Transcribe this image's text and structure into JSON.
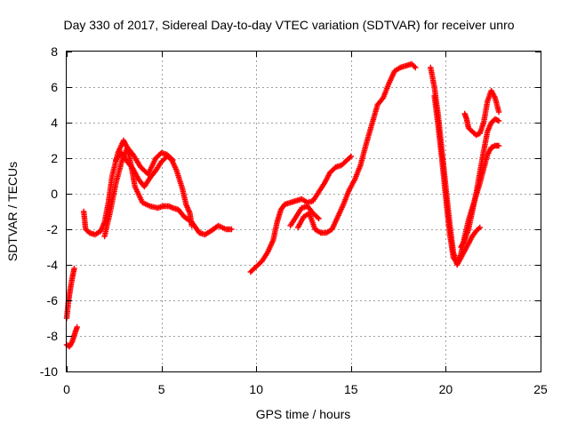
{
  "chart_data": {
    "type": "scatter",
    "title": "Day 330 of 2017, Sidereal Day-to-day VTEC variation (SDTVAR) for receiver unro",
    "xlabel": "GPS time / hours",
    "ylabel": "SDTVAR / TECUs",
    "xlim": [
      0,
      25
    ],
    "ylim": [
      -10,
      8
    ],
    "x_ticks": [
      "0",
      "5",
      "10",
      "15",
      "20",
      "25"
    ],
    "x_tick_values": [
      0,
      5,
      10,
      15,
      20,
      25
    ],
    "y_ticks": [
      "-10",
      "-8",
      "-6",
      "-4",
      "-2",
      "0",
      "2",
      "4",
      "6",
      "8"
    ],
    "y_tick_values": [
      -10,
      -8,
      -6,
      -4,
      -2,
      0,
      2,
      4,
      6,
      8
    ],
    "grid": true,
    "marker": "plus",
    "color": "#ff0000",
    "series": [
      {
        "x": [
          0.0,
          0.1,
          0.2,
          0.3,
          0.4
        ],
        "y": [
          -7.0,
          -6.0,
          -5.3,
          -4.7,
          -4.2
        ]
      },
      {
        "x": [
          0.0,
          0.15,
          0.3,
          0.45,
          0.55
        ],
        "y": [
          -8.5,
          -8.6,
          -8.3,
          -7.8,
          -7.5
        ]
      },
      {
        "x": [
          0.9,
          1.0,
          1.2,
          1.5,
          1.8,
          2.0,
          2.2,
          2.4,
          2.7,
          3.0,
          3.2,
          3.4,
          3.6,
          4.0,
          4.4,
          4.8,
          5.1,
          5.4,
          5.6,
          5.9,
          6.2,
          6.6,
          7.0,
          7.3,
          7.6,
          8.0,
          8.4,
          8.7
        ],
        "y": [
          -1.0,
          -2.0,
          -2.2,
          -2.3,
          -2.1,
          -1.6,
          -0.5,
          1.0,
          2.3,
          3.0,
          2.6,
          1.6,
          0.4,
          -0.5,
          -0.7,
          -0.8,
          -0.7,
          -0.7,
          -0.8,
          -0.9,
          -1.3,
          -1.6,
          -2.2,
          -2.3,
          -2.1,
          -1.8,
          -2.0,
          -2.0
        ]
      },
      {
        "x": [
          2.0,
          2.3,
          2.6,
          2.9,
          3.2,
          3.5,
          3.9,
          4.3,
          4.7,
          5.0,
          5.3,
          5.5,
          5.8,
          6.1,
          6.3,
          6.5,
          6.6
        ],
        "y": [
          -2.4,
          -1.0,
          0.6,
          1.8,
          2.6,
          2.2,
          1.5,
          1.1,
          2.0,
          2.3,
          2.2,
          2.0,
          1.3,
          0.3,
          -0.6,
          -1.1,
          -1.8
        ]
      },
      {
        "x": [
          2.6,
          2.9,
          3.2,
          3.5,
          3.8,
          4.1,
          4.4,
          4.7,
          5.0,
          5.3,
          5.6
        ],
        "y": [
          1.9,
          2.3,
          1.8,
          1.4,
          0.8,
          0.4,
          0.9,
          1.3,
          1.8,
          2.1,
          1.9
        ]
      },
      {
        "x": [
          9.7,
          10.0,
          10.3,
          10.6,
          10.9,
          11.1,
          11.3,
          11.5,
          11.8,
          12.1,
          12.4,
          12.7,
          13.0,
          13.3,
          13.6,
          13.9,
          14.2,
          14.5,
          14.8,
          15.0
        ],
        "y": [
          -4.4,
          -4.1,
          -3.8,
          -3.3,
          -2.6,
          -1.6,
          -0.9,
          -0.6,
          -0.5,
          -0.4,
          -0.3,
          -0.5,
          -0.4,
          0.1,
          0.6,
          1.2,
          1.5,
          1.6,
          1.9,
          2.1
        ]
      },
      {
        "x": [
          11.8,
          12.1,
          12.4,
          12.7,
          13.0,
          13.3
        ],
        "y": [
          -1.8,
          -1.3,
          -0.8,
          -0.7,
          -1.1,
          -1.4
        ]
      },
      {
        "x": [
          12.2,
          12.5,
          12.8,
          13.1,
          13.4,
          13.7,
          14.0,
          14.3,
          14.6,
          14.9,
          15.2,
          15.5,
          15.8,
          16.1,
          16.4,
          16.7,
          17.0,
          17.3,
          17.6,
          17.9,
          18.2,
          18.4
        ],
        "y": [
          -1.9,
          -1.3,
          -1.1,
          -2.0,
          -2.2,
          -2.2,
          -2.0,
          -1.3,
          -0.6,
          0.2,
          0.8,
          1.6,
          2.8,
          3.9,
          5.0,
          5.4,
          6.2,
          6.9,
          7.1,
          7.2,
          7.3,
          7.1
        ]
      },
      {
        "x": [
          19.2,
          19.4,
          19.6,
          19.8,
          20.0,
          20.2,
          20.4,
          20.6,
          20.8,
          21.0,
          21.2,
          21.4,
          21.6,
          21.8
        ],
        "y": [
          7.1,
          6.0,
          4.4,
          2.4,
          0.4,
          -1.6,
          -3.3,
          -4.0,
          -3.6,
          -3.2,
          -2.8,
          -2.4,
          -2.1,
          -1.9
        ]
      },
      {
        "x": [
          19.4,
          19.6,
          19.8,
          20.0,
          20.2,
          20.4,
          20.6,
          20.8,
          21.0,
          21.2,
          21.4,
          21.6,
          21.8,
          22.0,
          22.2,
          22.4,
          22.6,
          22.8
        ],
        "y": [
          5.5,
          3.8,
          1.9,
          -0.2,
          -2.2,
          -3.6,
          -3.9,
          -3.4,
          -2.4,
          -1.5,
          -0.8,
          -0.1,
          0.6,
          1.4,
          2.2,
          2.6,
          2.7,
          2.7
        ]
      },
      {
        "x": [
          20.8,
          21.0,
          21.2,
          21.4,
          21.6,
          21.8,
          22.0,
          22.2,
          22.4,
          22.6,
          22.8
        ],
        "y": [
          -3.0,
          -2.6,
          -2.0,
          -1.0,
          0.0,
          1.2,
          2.4,
          3.5,
          4.0,
          4.2,
          4.1
        ]
      },
      {
        "x": [
          21.0,
          21.1,
          21.2,
          21.4,
          21.6,
          21.8,
          22.0,
          22.2,
          22.4,
          22.6,
          22.8
        ],
        "y": [
          4.5,
          4.2,
          3.7,
          3.5,
          3.3,
          3.4,
          4.0,
          5.2,
          5.8,
          5.4,
          4.6
        ]
      }
    ]
  }
}
